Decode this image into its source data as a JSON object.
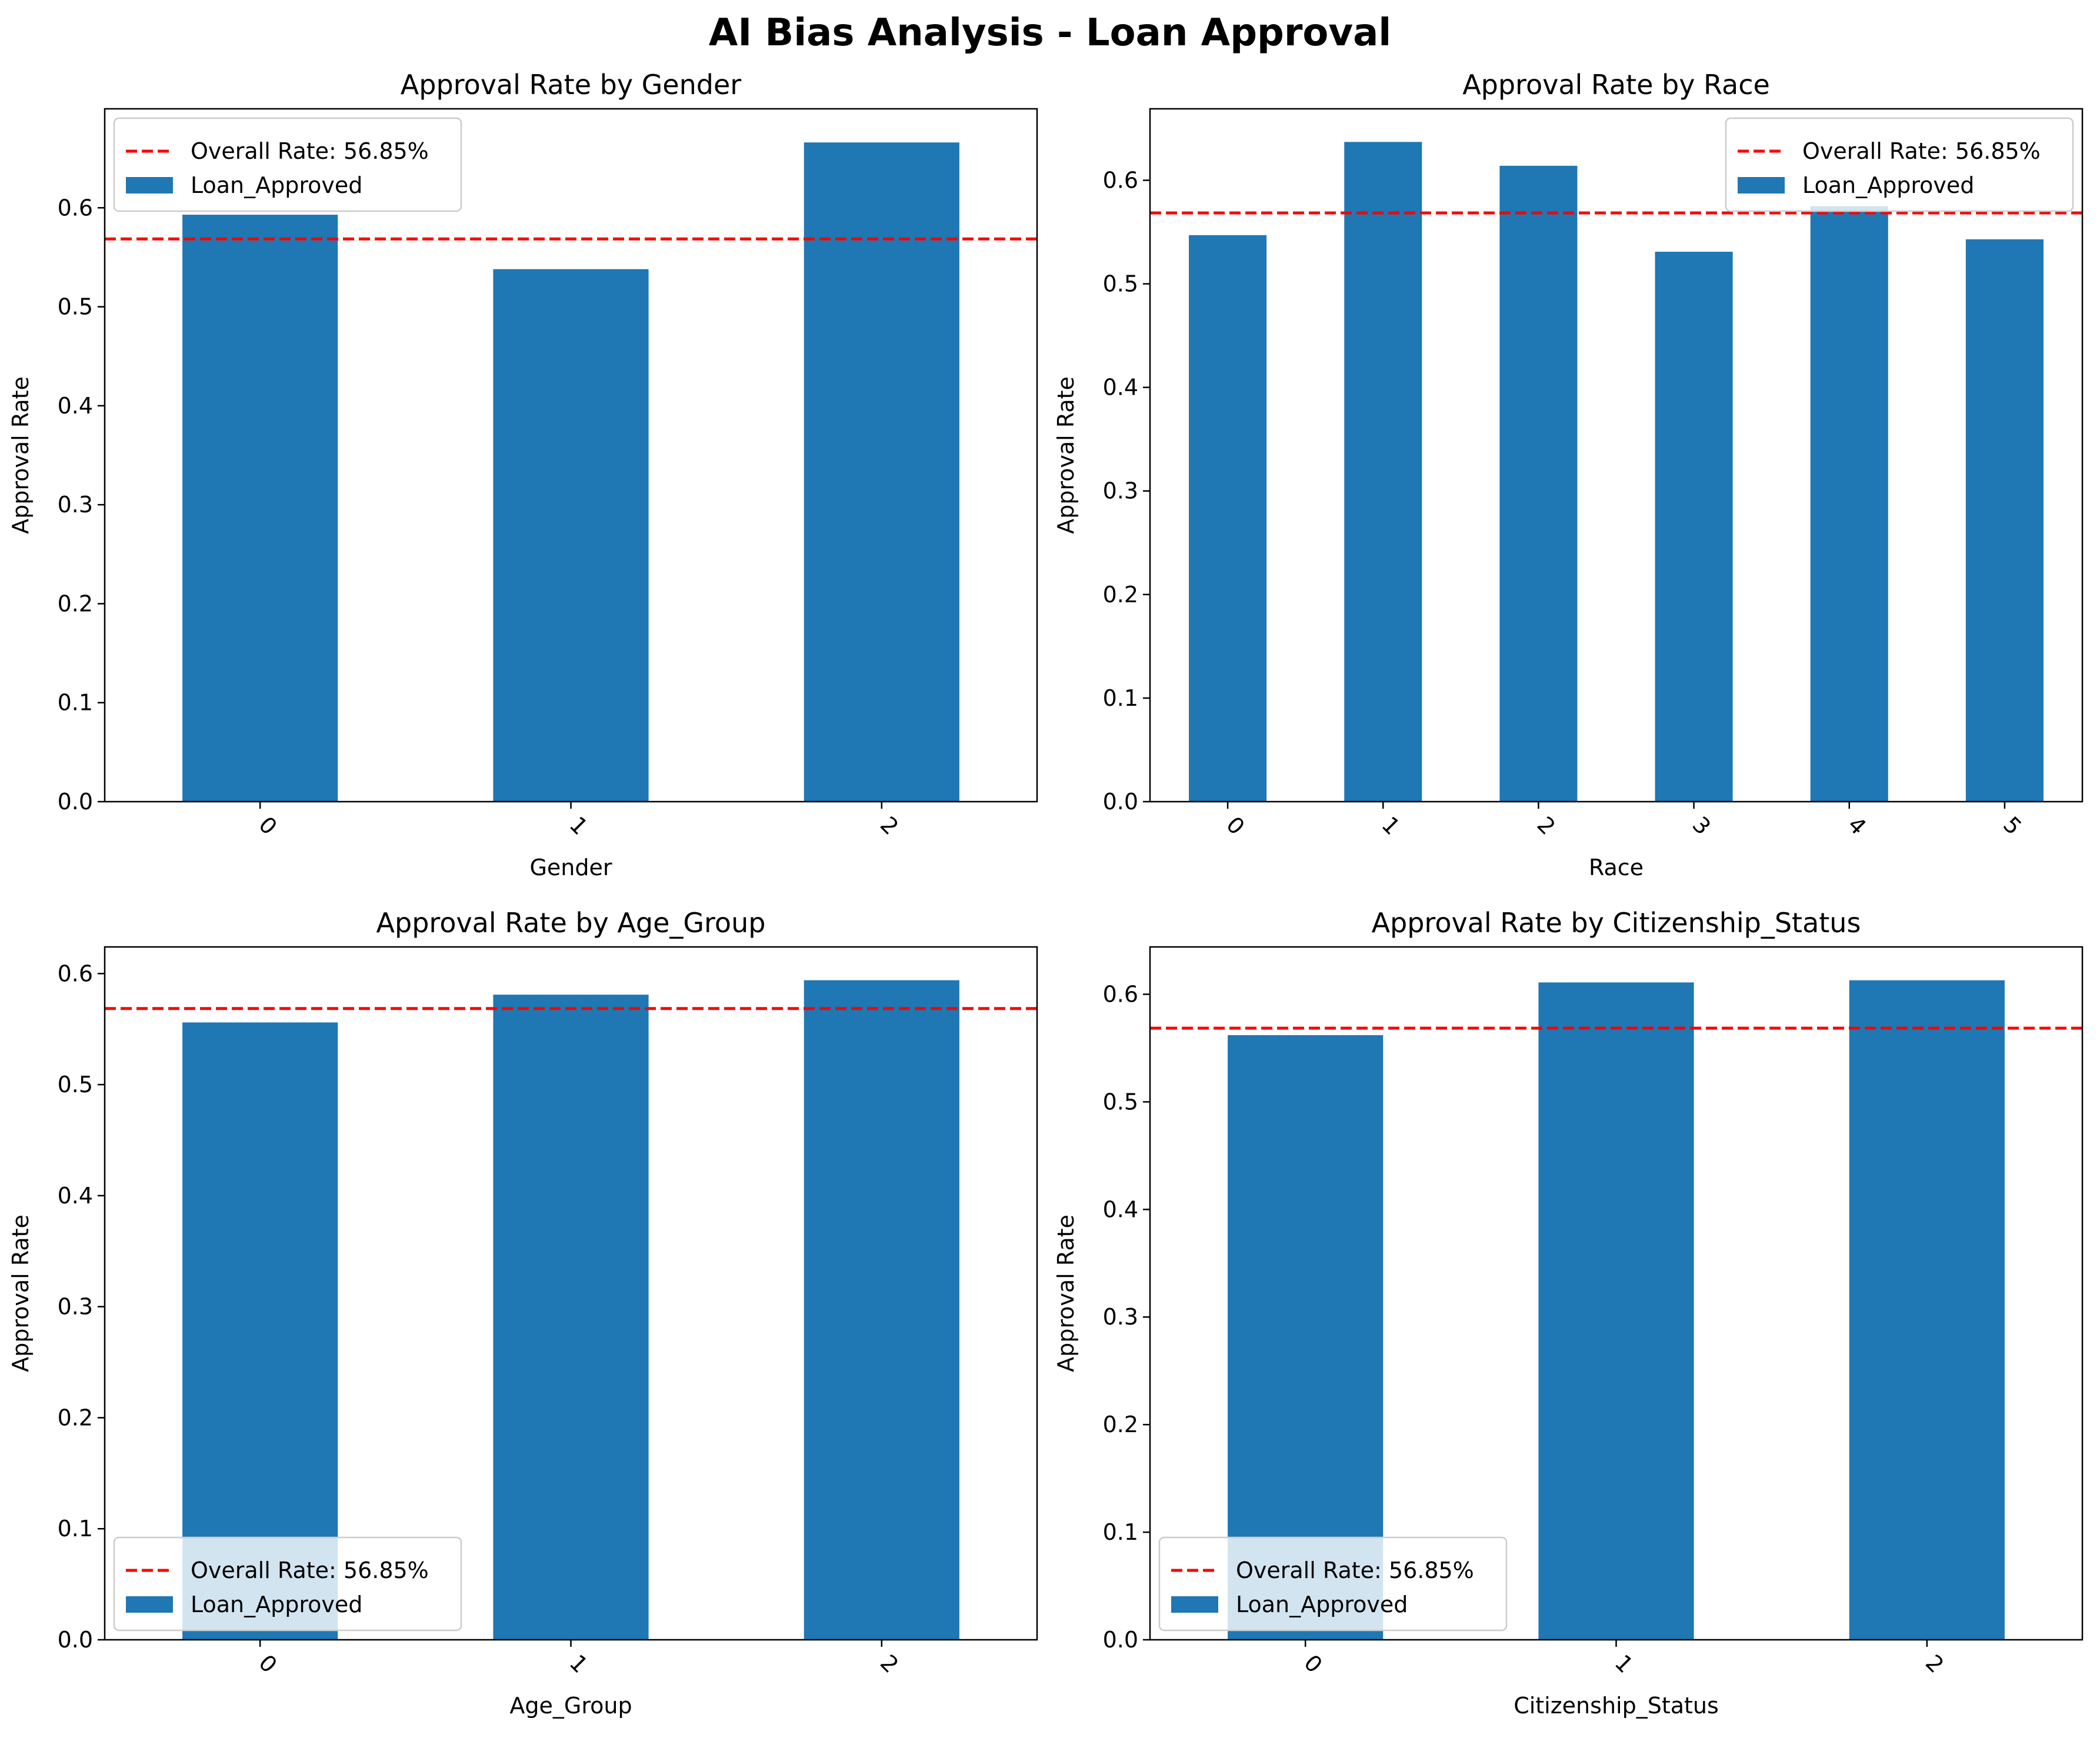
{
  "figure": {
    "suptitle": "AI Bias Analysis - Loan Approval"
  },
  "colors": {
    "bar": "#1f77b4",
    "reference_line": "#ff0000",
    "axes": "#000000",
    "background": "#ffffff"
  },
  "chart_data": [
    {
      "type": "bar",
      "title": "Approval Rate by Gender",
      "xlabel": "Gender",
      "ylabel": "Approval Rate",
      "categories": [
        "0",
        "1",
        "2"
      ],
      "series": [
        {
          "name": "Loan_Approved",
          "values": [
            0.593,
            0.538,
            0.666
          ]
        }
      ],
      "reference_line": {
        "label": "Overall Rate: 56.85%",
        "value": 0.5685,
        "style": "dashed"
      },
      "ylim": [
        0,
        0.7
      ],
      "yticks": [
        0.0,
        0.1,
        0.2,
        0.3,
        0.4,
        0.5,
        0.6
      ],
      "xtick_rotation": 45,
      "legend_position": "upper left",
      "grid": false
    },
    {
      "type": "bar",
      "title": "Approval Rate by Race",
      "xlabel": "Race",
      "ylabel": "Approval Rate",
      "categories": [
        "0",
        "1",
        "2",
        "3",
        "4",
        "5"
      ],
      "series": [
        {
          "name": "Loan_Approved",
          "values": [
            0.547,
            0.637,
            0.614,
            0.531,
            0.575,
            0.543
          ]
        }
      ],
      "reference_line": {
        "label": "Overall Rate: 56.85%",
        "value": 0.5685,
        "style": "dashed"
      },
      "ylim": [
        0,
        0.669
      ],
      "yticks": [
        0.0,
        0.1,
        0.2,
        0.3,
        0.4,
        0.5,
        0.6
      ],
      "xtick_rotation": 45,
      "legend_position": "upper right",
      "grid": false
    },
    {
      "type": "bar",
      "title": "Approval Rate by Age_Group",
      "xlabel": "Age_Group",
      "ylabel": "Approval Rate",
      "categories": [
        "0",
        "1",
        "2"
      ],
      "series": [
        {
          "name": "Loan_Approved",
          "values": [
            0.556,
            0.581,
            0.594
          ]
        }
      ],
      "reference_line": {
        "label": "Overall Rate: 56.85%",
        "value": 0.5685,
        "style": "dashed"
      },
      "ylim": [
        0,
        0.624
      ],
      "yticks": [
        0.0,
        0.1,
        0.2,
        0.3,
        0.4,
        0.5,
        0.6
      ],
      "xtick_rotation": 45,
      "legend_position": "lower left",
      "grid": false
    },
    {
      "type": "bar",
      "title": "Approval Rate by Citizenship_Status",
      "xlabel": "Citizenship_Status",
      "ylabel": "Approval Rate",
      "categories": [
        "0",
        "1",
        "2"
      ],
      "series": [
        {
          "name": "Loan_Approved",
          "values": [
            0.562,
            0.611,
            0.613
          ]
        }
      ],
      "reference_line": {
        "label": "Overall Rate: 56.85%",
        "value": 0.5685,
        "style": "dashed"
      },
      "ylim": [
        0,
        0.644
      ],
      "yticks": [
        0.0,
        0.1,
        0.2,
        0.3,
        0.4,
        0.5,
        0.6
      ],
      "xtick_rotation": 45,
      "legend_position": "lower left",
      "grid": false
    }
  ]
}
